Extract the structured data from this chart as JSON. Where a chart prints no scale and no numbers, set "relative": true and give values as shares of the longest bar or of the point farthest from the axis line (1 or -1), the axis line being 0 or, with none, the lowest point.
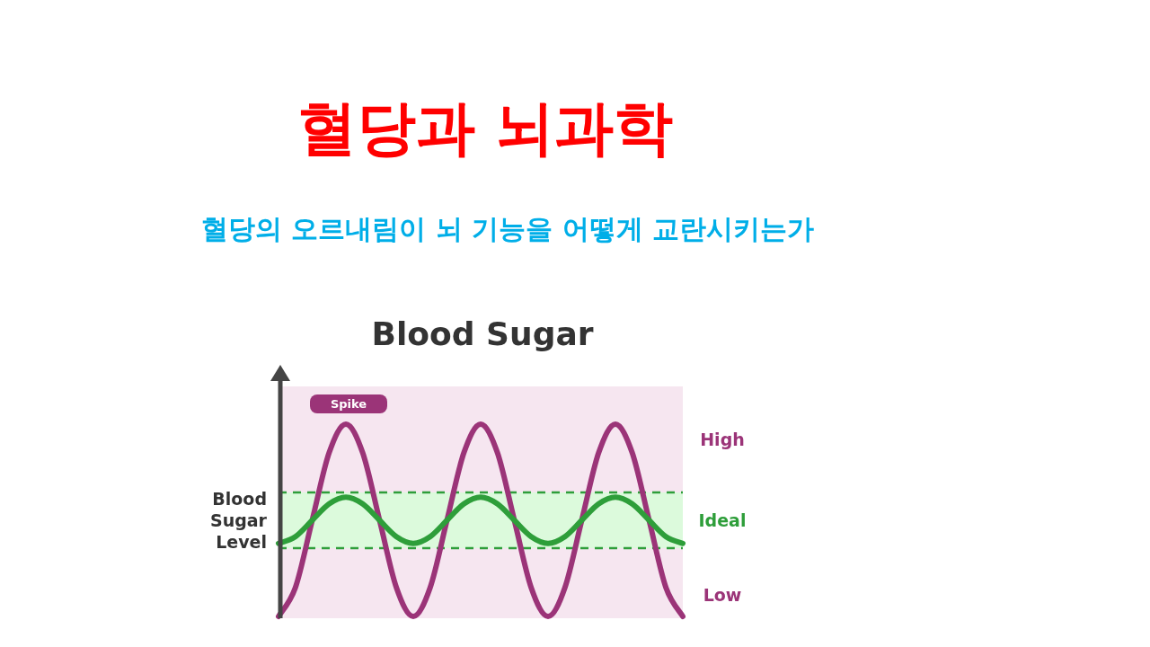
{
  "chart_data": {
    "type": "line",
    "relative": true,
    "title": "혈당과 뇌과학",
    "subtitle": "혈당의 오르내림이 뇌 기능을 어떻게 교란시키는가",
    "ylabel": "Blood Sugar Level",
    "annotations": [
      "Blood Sugar",
      "Spike",
      "High",
      "Low"
    ],
    "categories": [
      null,
      null,
      null,
      null,
      null,
      null,
      null,
      null,
      null,
      null,
      null,
      null,
      null,
      null,
      null,
      null,
      null,
      null,
      null,
      null,
      null,
      null,
      null,
      null,
      null
    ],
    "series": [
      {
        "color": "#9b3478",
        "values": [
          0,
          0.15,
          0.5,
          0.85,
          1,
          0.85,
          0.5,
          0.15,
          0,
          0.15,
          0.5,
          0.85,
          1,
          0.85,
          0.5,
          0.15,
          0,
          0.15,
          0.5,
          0.85,
          1,
          0.85,
          0.5,
          0.15,
          0
        ]
      },
      {
        "color": "#2e9e3a",
        "values": [
          0.38,
          0.415,
          0.5,
          0.585,
          0.62,
          0.585,
          0.5,
          0.415,
          0.38,
          0.415,
          0.5,
          0.585,
          0.62,
          0.585,
          0.5,
          0.415,
          0.38,
          0.415,
          0.5,
          0.585,
          0.62,
          0.585,
          0.5,
          0.415,
          0.38
        ]
      }
    ],
    "bands": [
      {
        "axis": "y",
        "from": 0.355,
        "to": 0.645,
        "label": "Ideal",
        "color": "#dcfadc"
      }
    ],
    "ref_lines": [
      {
        "axis": "y",
        "value": 0.645,
        "color": "#2e9e3a",
        "line_style": "dashed"
      },
      {
        "axis": "y",
        "value": 0.355,
        "color": "#2e9e3a",
        "line_style": "dashed"
      }
    ],
    "legend": false,
    "grid": false,
    "line_style": "solid",
    "marker": "none"
  }
}
